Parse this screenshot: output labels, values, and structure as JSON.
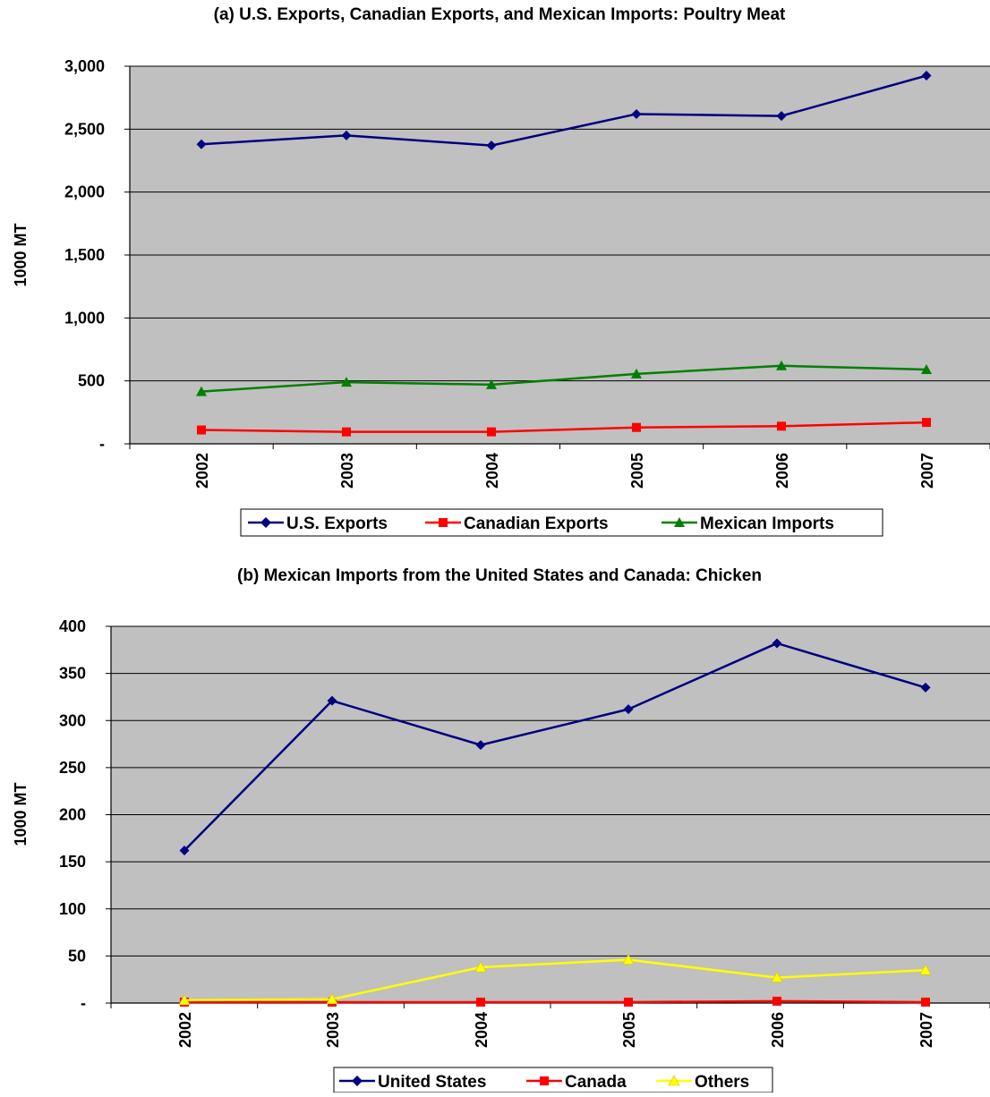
{
  "chart_data": [
    {
      "type": "line",
      "title": "(a) U.S. Exports, Canadian Exports, and Mexican Imports: Poultry Meat",
      "xlabel": "",
      "ylabel": "1000 MT",
      "categories": [
        "2002",
        "2003",
        "2004",
        "2005",
        "2006",
        "2007"
      ],
      "ylim": [
        0,
        3000
      ],
      "yticks": [
        0,
        500,
        1000,
        1500,
        2000,
        2500,
        3000
      ],
      "ytick_labels": [
        "-",
        "500",
        "1,000",
        "1,500",
        "2,000",
        "2,500",
        "3,000"
      ],
      "grid": true,
      "legend_position": "bottom",
      "plot_background": "#C0C0C0",
      "series": [
        {
          "name": "U.S. Exports",
          "values": [
            2380,
            2450,
            2370,
            2620,
            2605,
            2925
          ],
          "color": "#000080",
          "marker": "diamond"
        },
        {
          "name": "Canadian Exports",
          "values": [
            110,
            95,
            95,
            130,
            140,
            170
          ],
          "color": "#FF0000",
          "marker": "square"
        },
        {
          "name": "Mexican Imports",
          "values": [
            415,
            490,
            470,
            555,
            620,
            590
          ],
          "color": "#008000",
          "marker": "triangle"
        }
      ]
    },
    {
      "type": "line",
      "title": "(b) Mexican Imports from the United States and Canada: Chicken",
      "xlabel": "",
      "ylabel": "1000 MT",
      "categories": [
        "2002",
        "2003",
        "2004",
        "2005",
        "2006",
        "2007"
      ],
      "ylim": [
        0,
        400
      ],
      "yticks": [
        0,
        50,
        100,
        150,
        200,
        250,
        300,
        350,
        400
      ],
      "ytick_labels": [
        "-",
        "50",
        "100",
        "150",
        "200",
        "250",
        "300",
        "350",
        "400"
      ],
      "grid": true,
      "legend_position": "bottom",
      "plot_background": "#C0C0C0",
      "series": [
        {
          "name": "United States",
          "values": [
            162,
            321,
            274,
            312,
            382,
            335
          ],
          "color": "#000080",
          "marker": "diamond"
        },
        {
          "name": "Canada",
          "values": [
            1,
            1,
            1,
            1,
            2,
            1
          ],
          "color": "#FF0000",
          "marker": "square"
        },
        {
          "name": "Others",
          "values": [
            3,
            4,
            38,
            46,
            27,
            35
          ],
          "color": "#FFFF00",
          "marker": "triangle"
        }
      ]
    }
  ]
}
